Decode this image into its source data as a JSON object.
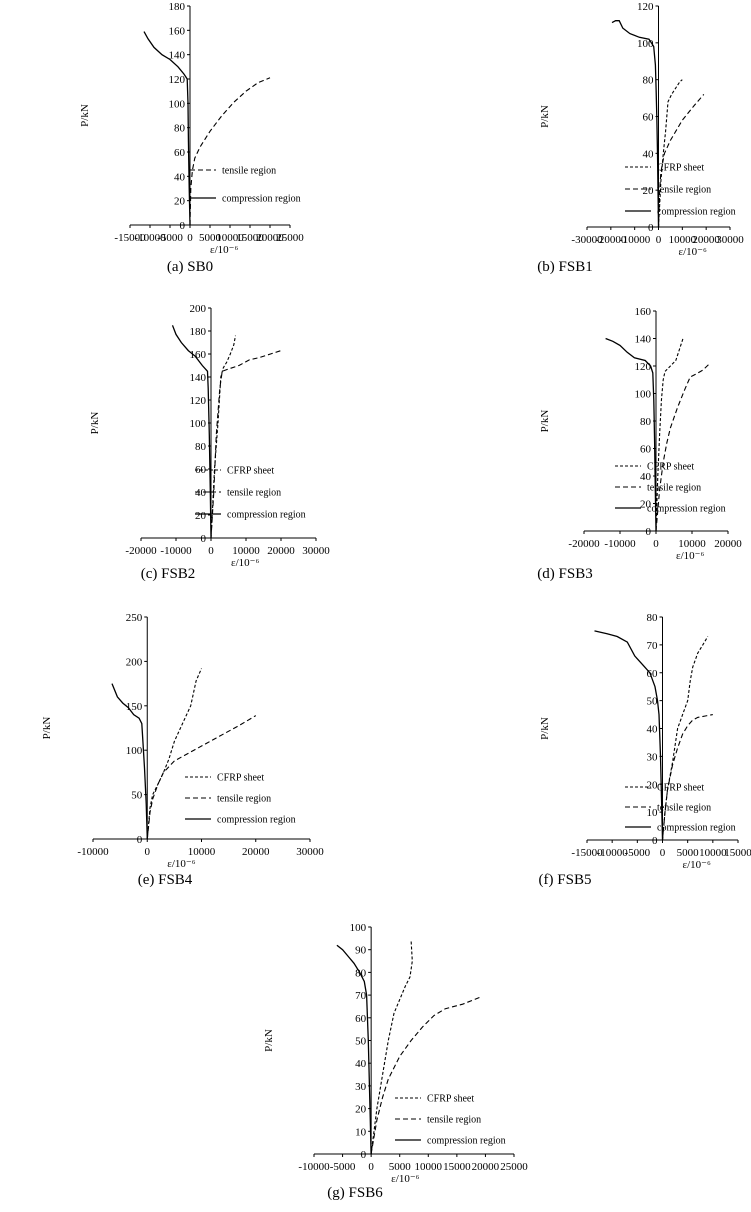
{
  "chart_data": [
    {
      "type": "line",
      "caption": "(a) SB0",
      "xlabel": "ε/10⁻⁶",
      "ylabel": "P/kN",
      "xlim": [
        -15000,
        25000
      ],
      "ylim": [
        0,
        180
      ],
      "xticks": [
        -15000,
        -10000,
        -5000,
        0,
        5000,
        10000,
        15000,
        20000,
        25000
      ],
      "yticks": [
        0,
        20,
        40,
        60,
        80,
        100,
        120,
        140,
        160,
        180
      ],
      "xtick_labels": [
        "-15000",
        "-10000",
        "-5000",
        "0",
        "5000",
        "10000",
        "15000",
        "20000",
        "25000"
      ],
      "ytick_labels": [
        "0",
        "20",
        "40",
        "60",
        "80",
        "100",
        "120",
        "140",
        "160",
        "180"
      ],
      "legend_position": "right",
      "series": [
        {
          "name": "tensile region",
          "style": "dashed",
          "x": [
            0,
            200,
            600,
            1200,
            2500,
            5000,
            8000,
            11000,
            14000,
            17000,
            20000
          ],
          "y": [
            0,
            30,
            45,
            55,
            64,
            77,
            90,
            101,
            110,
            117,
            121
          ]
        },
        {
          "name": "compression region",
          "style": "solid",
          "x": [
            0,
            -200,
            -400,
            -500,
            -700,
            -1500,
            -3000,
            -5000,
            -7000,
            -9000,
            -10500,
            -11500
          ],
          "y": [
            0,
            30,
            70,
            100,
            120,
            124,
            130,
            136,
            140,
            146,
            153,
            159
          ]
        }
      ]
    },
    {
      "type": "line",
      "caption": "(b) FSB1",
      "xlabel": "ε/10⁻⁶",
      "ylabel": "P/kN",
      "xlim": [
        -30000,
        30000
      ],
      "ylim": [
        0,
        120
      ],
      "xticks": [
        -30000,
        -20000,
        -10000,
        0,
        10000,
        20000,
        30000
      ],
      "yticks": [
        0,
        20,
        40,
        60,
        80,
        100,
        120
      ],
      "xtick_labels": [
        "-30000",
        "-20000",
        "-10000",
        "0",
        "10000",
        "20000",
        "30000"
      ],
      "ytick_labels": [
        "0",
        "20",
        "40",
        "60",
        "80",
        "100",
        "120"
      ],
      "legend_position": "bottom-right",
      "series": [
        {
          "name": "CFRP sheet",
          "style": "dotted",
          "x": [
            0,
            1000,
            2000,
            3000,
            4000,
            5500,
            7500,
            9000,
            10000
          ],
          "y": [
            0,
            25,
            40,
            52,
            68,
            72,
            76,
            79,
            80
          ]
        },
        {
          "name": "tensile region",
          "style": "dashed",
          "x": [
            0,
            500,
            1000,
            2500,
            5000,
            10000,
            15000,
            19000
          ],
          "y": [
            0,
            20,
            30,
            40,
            47,
            58,
            66,
            72
          ]
        },
        {
          "name": "compression region",
          "style": "solid",
          "x": [
            0,
            -200,
            -400,
            -700,
            -1000,
            -1300,
            -2000,
            -4000,
            -8000,
            -12000,
            -15000,
            -16500,
            -18000,
            -19500
          ],
          "y": [
            0,
            20,
            40,
            60,
            75,
            88,
            98,
            102,
            103,
            105,
            108,
            112,
            112,
            111
          ]
        }
      ]
    },
    {
      "type": "line",
      "caption": "(c) FSB2",
      "xlabel": "ε/10⁻⁶",
      "ylabel": "P/kN",
      "xlim": [
        -20000,
        30000
      ],
      "ylim": [
        0,
        200
      ],
      "xticks": [
        -20000,
        -10000,
        0,
        10000,
        20000,
        30000
      ],
      "yticks": [
        0,
        20,
        40,
        60,
        80,
        100,
        120,
        140,
        160,
        180,
        200
      ],
      "xtick_labels": [
        "-20000",
        "-10000",
        "0",
        "10000",
        "20000",
        "30000"
      ],
      "ytick_labels": [
        "0",
        "20",
        "40",
        "60",
        "80",
        "100",
        "120",
        "140",
        "160",
        "180",
        "200"
      ],
      "legend_position": "bottom-right",
      "series": [
        {
          "name": "CFRP sheet",
          "style": "dotted",
          "x": [
            0,
            500,
            1000,
            2000,
            2800,
            3500,
            4500,
            5500,
            6500,
            7000
          ],
          "y": [
            0,
            30,
            60,
            100,
            140,
            148,
            153,
            160,
            168,
            176
          ]
        },
        {
          "name": "tensile region",
          "style": "dashed",
          "x": [
            0,
            800,
            1500,
            2500,
            3200,
            5000,
            8000,
            11000,
            14000,
            17000,
            20000
          ],
          "y": [
            0,
            40,
            90,
            130,
            145,
            147,
            150,
            155,
            157,
            160,
            163
          ]
        },
        {
          "name": "compression region",
          "style": "solid",
          "x": [
            0,
            -200,
            -500,
            -800,
            -1000,
            -2500,
            -4500,
            -6500,
            -8500,
            -10000,
            -11000
          ],
          "y": [
            0,
            40,
            90,
            130,
            145,
            150,
            158,
            163,
            170,
            177,
            185
          ]
        }
      ]
    },
    {
      "type": "line",
      "caption": "(d) FSB3",
      "xlabel": "ε/10⁻⁶",
      "ylabel": "P/kN",
      "xlim": [
        -20000,
        20000
      ],
      "ylim": [
        0,
        160
      ],
      "xticks": [
        -20000,
        -10000,
        0,
        10000,
        20000
      ],
      "yticks": [
        0,
        20,
        40,
        60,
        80,
        100,
        120,
        140,
        160
      ],
      "xtick_labels": [
        "-20000",
        "-10000",
        "0",
        "10000",
        "20000"
      ],
      "ytick_labels": [
        "0",
        "20",
        "40",
        "60",
        "80",
        "100",
        "120",
        "140",
        "160"
      ],
      "legend_position": "bottom-right",
      "series": [
        {
          "name": "CFRP sheet",
          "style": "dotted",
          "x": [
            0,
            500,
            1000,
            1500,
            2000,
            2500,
            4000,
            5500,
            6500,
            7500
          ],
          "y": [
            0,
            40,
            70,
            95,
            110,
            116,
            120,
            124,
            132,
            140
          ]
        },
        {
          "name": "tensile region",
          "style": "dashed",
          "x": [
            0,
            1000,
            2000,
            3000,
            4000,
            6000,
            8000,
            9500,
            11000,
            13000,
            15000
          ],
          "y": [
            0,
            30,
            50,
            64,
            75,
            90,
            103,
            112,
            114,
            117,
            122
          ]
        },
        {
          "name": "compression region",
          "style": "solid",
          "x": [
            0,
            -200,
            -400,
            -600,
            -900,
            -1500,
            -3000,
            -6000,
            -8000,
            -10000,
            -12000,
            -14000
          ],
          "y": [
            0,
            30,
            65,
            95,
            115,
            120,
            124,
            126,
            130,
            135,
            138,
            140
          ]
        }
      ]
    },
    {
      "type": "line",
      "caption": "(e) FSB4",
      "xlabel": "ε/10⁻⁶",
      "ylabel": "P/kN",
      "xlim": [
        -10000,
        30000
      ],
      "ylim": [
        0,
        250
      ],
      "xticks": [
        -10000,
        0,
        10000,
        20000,
        30000
      ],
      "yticks": [
        0,
        50,
        100,
        150,
        200,
        250
      ],
      "xtick_labels": [
        "-10000",
        "0",
        "10000",
        "20000",
        "30000"
      ],
      "ytick_labels": [
        "0",
        "50",
        "100",
        "150",
        "200",
        "250"
      ],
      "legend_position": "bottom-right",
      "series": [
        {
          "name": "CFRP sheet",
          "style": "dotted",
          "x": [
            0,
            500,
            1000,
            2000,
            3000,
            4000,
            5000,
            6500,
            8000,
            9000,
            10000
          ],
          "y": [
            0,
            35,
            50,
            62,
            75,
            90,
            110,
            130,
            150,
            178,
            192
          ]
        },
        {
          "name": "tensile region",
          "style": "dashed",
          "x": [
            0,
            500,
            1000,
            2000,
            3000,
            5000,
            8000,
            11000,
            14000,
            17000,
            20000
          ],
          "y": [
            0,
            30,
            45,
            62,
            75,
            88,
            98,
            108,
            118,
            128,
            139
          ]
        },
        {
          "name": "compression region",
          "style": "solid",
          "x": [
            0,
            -200,
            -500,
            -800,
            -1000,
            -1500,
            -2500,
            -3500,
            -4500,
            -5500,
            -6500
          ],
          "y": [
            0,
            40,
            80,
            110,
            130,
            136,
            140,
            148,
            153,
            160,
            175
          ]
        }
      ]
    },
    {
      "type": "line",
      "caption": "(f) FSB5",
      "xlabel": "ε/10⁻⁶",
      "ylabel": "P/kN",
      "xlim": [
        -15000,
        15000
      ],
      "ylim": [
        0,
        80
      ],
      "xticks": [
        -15000,
        -10000,
        -5000,
        0,
        5000,
        10000,
        15000
      ],
      "yticks": [
        0,
        10,
        20,
        30,
        40,
        50,
        60,
        70,
        80
      ],
      "xtick_labels": [
        "-15000",
        "-10000",
        "-5000",
        "0",
        "5000",
        "10000",
        "15000"
      ],
      "ytick_labels": [
        "0",
        "10",
        "20",
        "30",
        "40",
        "50",
        "60",
        "70",
        "80"
      ],
      "legend_position": "bottom-right",
      "series": [
        {
          "name": "CFRP sheet",
          "style": "dotted",
          "x": [
            0,
            500,
            1000,
            2000,
            3000,
            4000,
            5000,
            5500,
            6000,
            7000,
            8000,
            9000
          ],
          "y": [
            0,
            10,
            18,
            28,
            40,
            45,
            50,
            57,
            62,
            67,
            70,
            73
          ]
        },
        {
          "name": "tensile region",
          "style": "dashed",
          "x": [
            0,
            500,
            1000,
            2000,
            3000,
            4000,
            5000,
            6000,
            7000,
            8500,
            10000
          ],
          "y": [
            0,
            10,
            18,
            27,
            33,
            38,
            41,
            43,
            44,
            44.5,
            45
          ]
        },
        {
          "name": "compression region",
          "style": "solid",
          "x": [
            0,
            -200,
            -400,
            -700,
            -1000,
            -1500,
            -2500,
            -4000,
            -5500,
            -7000,
            -9000,
            -11000,
            -13500
          ],
          "y": [
            0,
            15,
            30,
            45,
            50,
            55,
            60,
            63,
            66,
            71,
            73,
            74,
            75
          ]
        }
      ]
    },
    {
      "type": "line",
      "caption": "(g) FSB6",
      "xlabel": "ε/10⁻⁶",
      "ylabel": "P/kN",
      "xlim": [
        -10000,
        25000
      ],
      "ylim": [
        0,
        100
      ],
      "xticks": [
        -10000,
        -5000,
        0,
        5000,
        10000,
        15000,
        20000,
        25000
      ],
      "yticks": [
        0,
        10,
        20,
        30,
        40,
        50,
        60,
        70,
        80,
        90,
        100
      ],
      "xtick_labels": [
        "-10000",
        "-5000",
        "0",
        "5000",
        "10000",
        "15000",
        "20000",
        "25000"
      ],
      "ytick_labels": [
        "0",
        "10",
        "20",
        "30",
        "40",
        "50",
        "60",
        "70",
        "80",
        "90",
        "100"
      ],
      "legend_position": "bottom-right",
      "series": [
        {
          "name": "CFRP sheet",
          "style": "dotted",
          "x": [
            0,
            500,
            1000,
            2000,
            3000,
            4000,
            5000,
            6000,
            6800,
            7200,
            7000
          ],
          "y": [
            0,
            10,
            20,
            35,
            50,
            62,
            68,
            74,
            78,
            85,
            94
          ]
        },
        {
          "name": "tensile region",
          "style": "dashed",
          "x": [
            0,
            1000,
            2000,
            3000,
            5000,
            7000,
            9000,
            11000,
            13000,
            16000,
            19000
          ],
          "y": [
            0,
            15,
            25,
            33,
            43,
            50,
            56,
            61,
            64,
            66,
            69
          ]
        },
        {
          "name": "compression region",
          "style": "solid",
          "x": [
            0,
            -200,
            -500,
            -800,
            -1200,
            -2000,
            -3000,
            -4000,
            -5000,
            -6000
          ],
          "y": [
            0,
            20,
            50,
            70,
            76,
            80,
            84,
            87,
            90,
            92
          ]
        }
      ]
    }
  ]
}
